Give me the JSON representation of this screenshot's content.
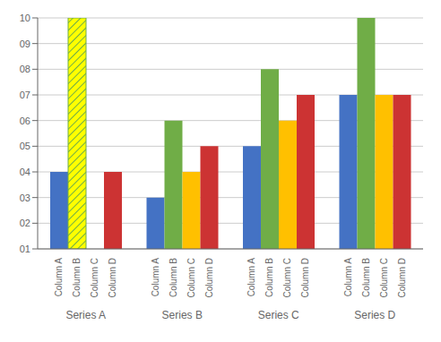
{
  "chart_data": {
    "type": "bar",
    "categories": [
      "Series A",
      "Series B",
      "Series C",
      "Series D"
    ],
    "series": [
      {
        "name": "Column A",
        "color": "#4472C4",
        "values": [
          4,
          3,
          5,
          7
        ]
      },
      {
        "name": "Column B",
        "color": "#70AD47",
        "colors": [
          "#FFFF00",
          "#70AD47",
          "#70AD47",
          "#70AD47"
        ],
        "values": [
          10,
          6,
          8,
          10
        ]
      },
      {
        "name": "Column C",
        "color": "#FFC000",
        "values": [
          null,
          4,
          6,
          7
        ]
      },
      {
        "name": "Column D",
        "color": "#CC3333",
        "values": [
          4,
          5,
          7,
          7
        ]
      }
    ],
    "ylim": [
      1,
      10
    ],
    "yticks": [
      {
        "value": 1,
        "label": "01"
      },
      {
        "value": 2,
        "label": "02"
      },
      {
        "value": 3,
        "label": "03"
      },
      {
        "value": 4,
        "label": "04"
      },
      {
        "value": 5,
        "label": "05"
      },
      {
        "value": 6,
        "label": "06"
      },
      {
        "value": 7,
        "label": "07"
      },
      {
        "value": 8,
        "label": "08"
      },
      {
        "value": 9,
        "label": "09"
      },
      {
        "value": 10,
        "label": "10"
      }
    ],
    "grid": true
  }
}
